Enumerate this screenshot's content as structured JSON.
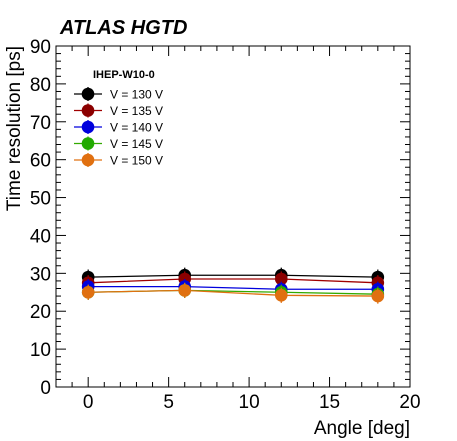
{
  "chart_data": {
    "type": "scatter",
    "title": "ATLAS HGTD",
    "xlabel": "Angle [deg]",
    "ylabel": "Time resolution [ps]",
    "xlim": [
      -2,
      20
    ],
    "ylim": [
      0,
      90
    ],
    "xticks": [
      0,
      5,
      10,
      15,
      20
    ],
    "yticks": [
      0,
      10,
      20,
      30,
      40,
      50,
      60,
      70,
      80,
      90
    ],
    "grid": false,
    "legend": {
      "title": "IHEP-W10-0",
      "placement": "top-left"
    },
    "x": [
      0,
      6,
      12,
      18
    ],
    "series": [
      {
        "name": "V = 130 V",
        "color": "#000000",
        "line_color": "#000000",
        "values": [
          29.0,
          29.5,
          29.5,
          29.0
        ],
        "errors": [
          2.0,
          2.0,
          2.0,
          2.0
        ]
      },
      {
        "name": "V = 135 V",
        "color": "#8b0000",
        "line_color": "#a00000",
        "values": [
          27.5,
          28.5,
          28.5,
          27.5
        ],
        "errors": [
          2.0,
          2.0,
          2.0,
          2.0
        ]
      },
      {
        "name": "V = 140 V",
        "color": "#0000dd",
        "line_color": "#0000dd",
        "values": [
          26.5,
          26.5,
          25.8,
          25.8
        ],
        "errors": [
          2.0,
          2.0,
          2.0,
          2.0
        ]
      },
      {
        "name": "V = 145 V",
        "color": "#22aa00",
        "line_color": "#33aa00",
        "values": [
          25.0,
          25.5,
          25.0,
          24.5
        ],
        "errors": [
          2.0,
          2.0,
          2.0,
          2.0
        ]
      },
      {
        "name": "V = 150 V",
        "color": "#e07010",
        "line_color": "#e07010",
        "values": [
          25.0,
          25.5,
          24.2,
          24.0
        ],
        "errors": [
          2.0,
          2.0,
          2.0,
          2.0
        ]
      }
    ]
  }
}
